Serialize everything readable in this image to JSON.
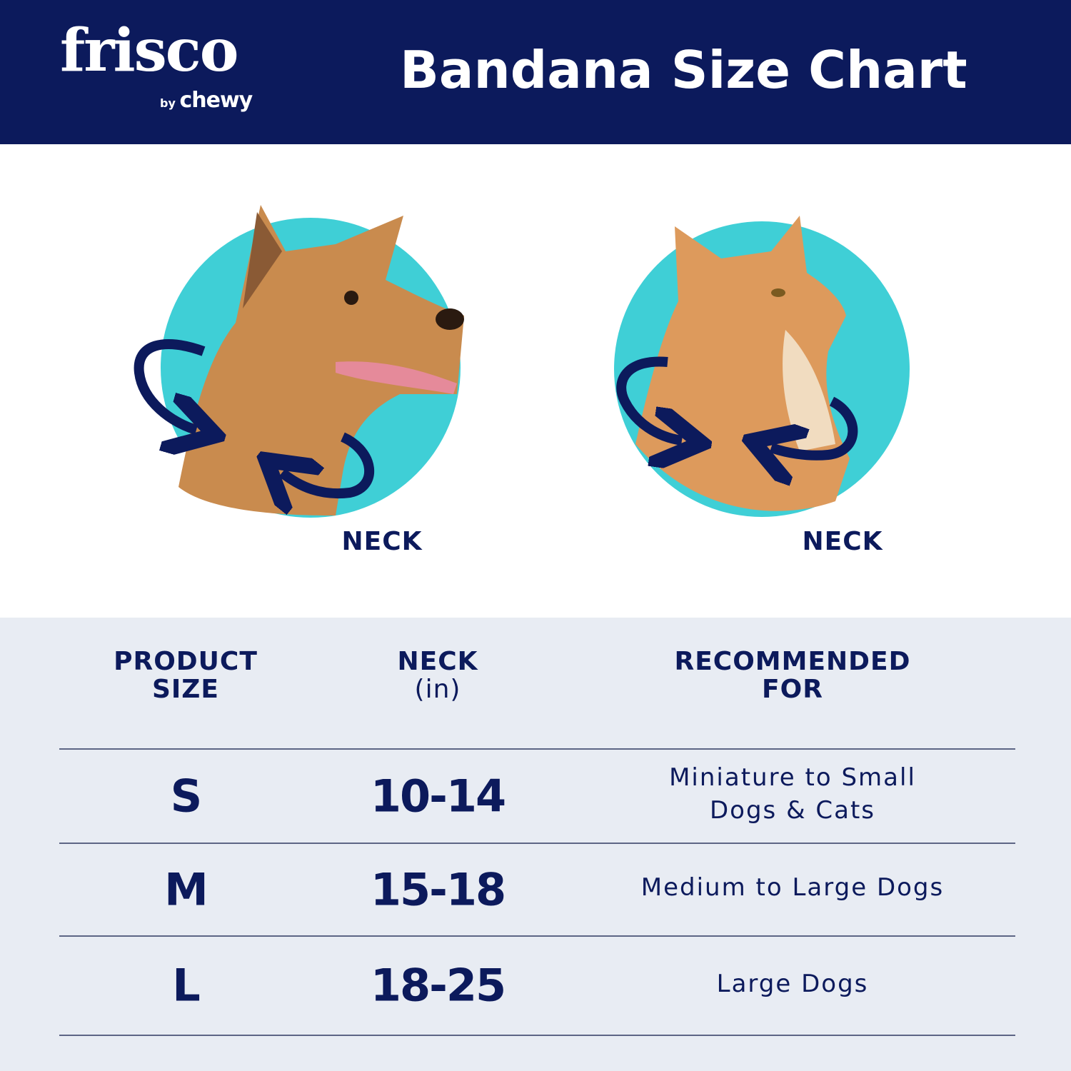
{
  "brand": {
    "logo_text": "frisco",
    "logo_sub_by": "by",
    "logo_sub": "chewy"
  },
  "header": {
    "title": "Bandana Size Chart"
  },
  "illustrations": [
    {
      "animal": "dog",
      "label": "NECK"
    },
    {
      "animal": "cat",
      "label": "NECK"
    }
  ],
  "colors": {
    "navy": "#0c1a5c",
    "teal": "#3fcfd6",
    "table_bg": "#e8ecf3"
  },
  "table": {
    "headers": [
      {
        "line1": "PRODUCT",
        "line2": "SIZE"
      },
      {
        "line1": "NECK",
        "line2": "(in)"
      },
      {
        "line1": "RECOMMENDED",
        "line2": "FOR"
      }
    ],
    "rows": [
      {
        "size": "S",
        "neck": "10-14",
        "recommended_line1": "Miniature to Small",
        "recommended_line2": "Dogs & Cats"
      },
      {
        "size": "M",
        "neck": "15-18",
        "recommended_line1": "Medium to Large Dogs",
        "recommended_line2": ""
      },
      {
        "size": "L",
        "neck": "18-25",
        "recommended_line1": "Large Dogs",
        "recommended_line2": ""
      }
    ]
  }
}
